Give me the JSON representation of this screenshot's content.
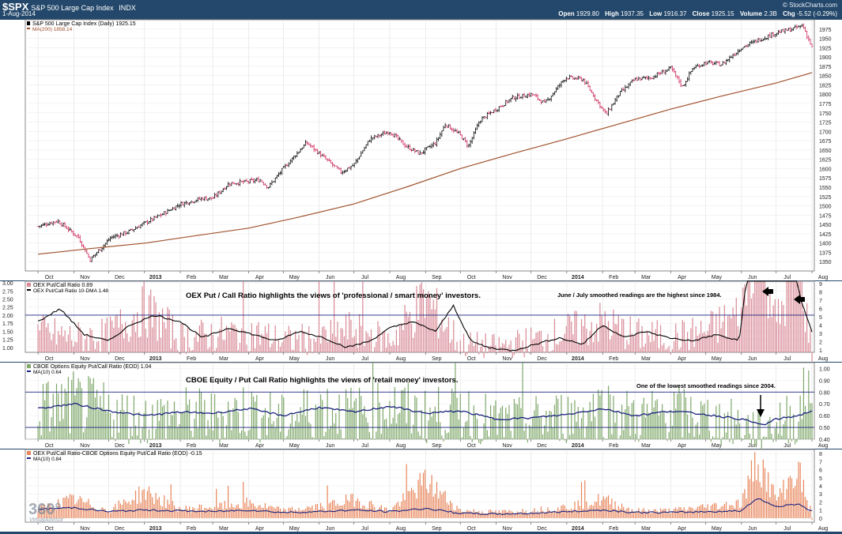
{
  "header": {
    "symbol": "$SPX",
    "symbol_name": "S&P 500 Large Cap Index",
    "exchange": "INDX",
    "date": "1-Aug-2014",
    "copyright": "© StockCharts.com",
    "open_label": "Open",
    "open": "1929.80",
    "high_label": "High",
    "high": "1937.35",
    "low_label": "Low",
    "low": "1916.37",
    "close_label": "Close",
    "close": "1925.15",
    "volume_label": "Volume",
    "volume": "2.3B",
    "chg_label": "Chg",
    "chg": "-5.52 (-0.29%)"
  },
  "colors": {
    "background": "#24486b",
    "panel": "#ffffff",
    "price_up": "#000000",
    "price_down": "#cc2255",
    "ma200": "#a0522d",
    "oex_bars": "#d98a96",
    "oex_line": "#000000",
    "cboe_bars": "#7fa86a",
    "cboe_line": "#1a237e",
    "diff_bars": "#e8855a",
    "diff_line": "#1a237e",
    "ref_line": "#1a237e"
  },
  "x_axis": {
    "ticks": [
      "Oct",
      "Nov",
      "Dec",
      "2013",
      "Feb",
      "Mar",
      "Apr",
      "May",
      "Jun",
      "Jul",
      "Aug",
      "Sep",
      "Oct",
      "Nov",
      "Dec",
      "2014",
      "Feb",
      "Mar",
      "Apr",
      "May",
      "Jun",
      "Jul",
      "Aug"
    ],
    "bold_ticks": [
      "2013",
      "2014"
    ]
  },
  "watermark": {
    "text1": "360°",
    "text2": "VirtualAdvisor"
  },
  "chart_data": [
    {
      "type": "line",
      "title": "S&P 500 Large Cap Index (Daily) 1925.15",
      "series": [
        {
          "name": "S&P 500 Large Cap Index (Daily) 1925.15",
          "style": "ohlc",
          "x": [
            "2012-10-01",
            "2012-10-18",
            "2012-11-05",
            "2012-11-15",
            "2012-12-03",
            "2012-12-18",
            "2013-01-02",
            "2013-01-15",
            "2013-02-01",
            "2013-02-20",
            "2013-03-01",
            "2013-03-15",
            "2013-04-01",
            "2013-04-11",
            "2013-04-18",
            "2013-05-01",
            "2013-05-21",
            "2013-06-05",
            "2013-06-20",
            "2013-07-01",
            "2013-07-15",
            "2013-08-01",
            "2013-08-15",
            "2013-08-27",
            "2013-09-10",
            "2013-09-18",
            "2013-10-01",
            "2013-10-08",
            "2013-10-18",
            "2013-11-01",
            "2013-11-15",
            "2013-12-02",
            "2013-12-13",
            "2013-12-31",
            "2014-01-15",
            "2014-02-04",
            "2014-02-15",
            "2014-03-01",
            "2014-03-15",
            "2014-04-01",
            "2014-04-11",
            "2014-04-20",
            "2014-05-01",
            "2014-05-15",
            "2014-06-01",
            "2014-06-15",
            "2014-07-01",
            "2014-07-15",
            "2014-07-24",
            "2014-08-01"
          ],
          "values": [
            1445,
            1460,
            1415,
            1355,
            1415,
            1430,
            1455,
            1475,
            1505,
            1520,
            1520,
            1560,
            1565,
            1570,
            1550,
            1600,
            1670,
            1630,
            1590,
            1610,
            1680,
            1700,
            1660,
            1640,
            1670,
            1720,
            1690,
            1660,
            1730,
            1760,
            1790,
            1800,
            1775,
            1845,
            1840,
            1745,
            1800,
            1840,
            1845,
            1870,
            1820,
            1870,
            1885,
            1880,
            1925,
            1945,
            1965,
            1975,
            1985,
            1925
          ]
        },
        {
          "name": "MA(200) 1858.14",
          "x": [
            "2012-10-01",
            "2012-11-15",
            "2013-01-02",
            "2013-02-15",
            "2013-04-01",
            "2013-05-15",
            "2013-07-01",
            "2013-08-15",
            "2013-10-01",
            "2013-11-15",
            "2014-01-01",
            "2014-02-15",
            "2014-04-01",
            "2014-05-15",
            "2014-07-01",
            "2014-08-01"
          ],
          "values": [
            1370,
            1385,
            1400,
            1420,
            1440,
            1470,
            1505,
            1550,
            1600,
            1640,
            1680,
            1720,
            1760,
            1795,
            1830,
            1858
          ]
        }
      ],
      "ylim": [
        1325,
        2000
      ],
      "yticks": [
        1350,
        1375,
        1400,
        1425,
        1450,
        1475,
        1500,
        1525,
        1550,
        1575,
        1600,
        1625,
        1650,
        1675,
        1700,
        1725,
        1750,
        1775,
        1800,
        1825,
        1850,
        1875,
        1900,
        1925,
        1950,
        1975
      ],
      "legend": [
        "S&P 500 Large Cap Index (Daily) 1925.15",
        "MA(200) 1858.14"
      ],
      "grid": true
    },
    {
      "type": "bar",
      "series": [
        {
          "name": "OEX Put/Call Ratio 0.89",
          "style": "bars",
          "x": [
            "2012-10-01",
            "2012-11-01",
            "2012-12-01",
            "2013-01-01",
            "2013-02-01",
            "2013-03-01",
            "2013-04-01",
            "2013-05-01",
            "2013-06-01",
            "2013-07-01",
            "2013-08-01",
            "2013-09-01",
            "2013-10-01",
            "2013-11-01",
            "2013-12-01",
            "2014-01-01",
            "2014-02-01",
            "2014-03-01",
            "2014-04-01",
            "2014-05-01",
            "2014-06-01",
            "2014-06-15",
            "2014-07-01",
            "2014-07-20",
            "2014-08-01"
          ],
          "values": [
            1.6,
            1.4,
            1.5,
            2.4,
            1.4,
            1.5,
            1.6,
            1.3,
            1.4,
            1.7,
            1.3,
            2.7,
            1.2,
            1.1,
            1.3,
            1.6,
            1.9,
            1.5,
            1.4,
            1.6,
            2.2,
            5.5,
            1.8,
            4.1,
            0.89
          ]
        },
        {
          "name": "OEX Put/Call Ratio 10-DMA 1.48",
          "style": "line",
          "x": [
            "2012-10-01",
            "2012-10-20",
            "2012-11-10",
            "2012-12-01",
            "2012-12-20",
            "2013-01-10",
            "2013-02-01",
            "2013-02-20",
            "2013-03-15",
            "2013-04-05",
            "2013-04-25",
            "2013-05-15",
            "2013-06-05",
            "2013-06-25",
            "2013-07-15",
            "2013-08-01",
            "2013-08-20",
            "2013-09-10",
            "2013-09-25",
            "2013-10-10",
            "2013-10-25",
            "2013-11-15",
            "2013-12-05",
            "2013-12-25",
            "2014-01-15",
            "2014-02-01",
            "2014-02-20",
            "2014-03-10",
            "2014-03-30",
            "2014-04-20",
            "2014-05-10",
            "2014-05-30",
            "2014-06-05",
            "2014-06-12",
            "2014-06-20",
            "2014-06-28",
            "2014-07-05",
            "2014-07-15",
            "2014-07-22",
            "2014-08-01"
          ],
          "values": [
            1.8,
            2.2,
            1.4,
            1.2,
            1.7,
            2.0,
            1.8,
            1.3,
            1.6,
            1.4,
            1.2,
            1.5,
            1.3,
            1.0,
            1.2,
            1.6,
            1.8,
            1.5,
            2.3,
            1.2,
            1.0,
            0.9,
            1.1,
            1.3,
            1.1,
            1.7,
            1.3,
            1.5,
            1.3,
            1.2,
            1.4,
            1.2,
            3.0,
            4.4,
            5.2,
            3.2,
            3.3,
            4.0,
            2.5,
            1.48
          ]
        }
      ],
      "ylim": [
        0.85,
        3.05
      ],
      "yticks_left": [
        1.0,
        1.25,
        1.5,
        1.75,
        2.0,
        2.25,
        2.5,
        2.75,
        3.0
      ],
      "yticks_right": [
        1,
        2,
        3,
        4,
        5,
        6,
        7,
        8,
        9
      ],
      "reference_line": 2.0,
      "annotations": [
        "OEX Put / Call Ratio highlights the views of 'professional / smart money' investors.",
        "June / July smoothed readings are the highest since 1984."
      ],
      "legend": [
        "OEX Put/Call Ratio 0.89",
        "OEX Put/Call Ratio 10-DMA 1.48"
      ]
    },
    {
      "type": "bar",
      "series": [
        {
          "name": "CBOE Options Equity Put/Call Ratio (EOD) 1.04",
          "style": "bars",
          "x": [
            "2012-10-01",
            "2012-11-01",
            "2012-12-01",
            "2013-01-01",
            "2013-02-01",
            "2013-03-01",
            "2013-04-01",
            "2013-05-01",
            "2013-06-01",
            "2013-07-01",
            "2013-08-01",
            "2013-09-01",
            "2013-10-01",
            "2013-11-01",
            "2013-12-01",
            "2014-01-01",
            "2014-02-01",
            "2014-03-01",
            "2014-04-01",
            "2014-05-01",
            "2014-06-01",
            "2014-06-20",
            "2014-07-01",
            "2014-07-20",
            "2014-08-01"
          ],
          "values": [
            0.7,
            0.76,
            0.68,
            0.62,
            0.66,
            0.64,
            0.7,
            0.6,
            0.72,
            0.66,
            0.74,
            0.64,
            0.7,
            0.58,
            0.6,
            0.64,
            0.72,
            0.62,
            0.68,
            0.62,
            0.56,
            0.5,
            0.6,
            0.62,
            1.04
          ]
        },
        {
          "name": "MA(10) 0.64",
          "style": "line",
          "x": [
            "2012-10-01",
            "2012-11-01",
            "2012-12-01",
            "2013-01-01",
            "2013-02-01",
            "2013-03-01",
            "2013-04-01",
            "2013-05-01",
            "2013-06-01",
            "2013-07-01",
            "2013-08-01",
            "2013-09-01",
            "2013-10-01",
            "2013-11-01",
            "2013-12-01",
            "2014-01-01",
            "2014-02-01",
            "2014-03-01",
            "2014-04-01",
            "2014-05-01",
            "2014-06-01",
            "2014-06-20",
            "2014-07-01",
            "2014-07-20",
            "2014-08-01"
          ],
          "values": [
            0.66,
            0.7,
            0.64,
            0.6,
            0.63,
            0.62,
            0.66,
            0.6,
            0.67,
            0.63,
            0.68,
            0.62,
            0.64,
            0.57,
            0.58,
            0.61,
            0.66,
            0.6,
            0.64,
            0.61,
            0.57,
            0.52,
            0.57,
            0.6,
            0.64
          ]
        }
      ],
      "ylim": [
        0.4,
        1.05
      ],
      "yticks": [
        0.4,
        0.5,
        0.6,
        0.7,
        0.8,
        0.9,
        1.0
      ],
      "reference_lines": [
        0.8,
        0.5
      ],
      "annotations": [
        "CBOE Equity / Put Call Ratio highlights the views of 'retail money' investors.",
        "One of the lowest smoothed readings since 2004."
      ],
      "legend": [
        "CBOE Options Equity Put/Call Ratio (EOD) 1.04",
        "MA(10) 0.64"
      ]
    },
    {
      "type": "bar",
      "series": [
        {
          "name": "OEX Put/Call Ratio-CBOE Options Equity Put/Call Ratio (EOD) -0.15",
          "style": "bars",
          "x": [
            "2012-10-01",
            "2012-11-01",
            "2012-12-01",
            "2013-01-01",
            "2013-02-01",
            "2013-03-01",
            "2013-04-01",
            "2013-05-01",
            "2013-06-01",
            "2013-07-01",
            "2013-08-01",
            "2013-09-01",
            "2013-10-01",
            "2013-11-01",
            "2013-12-01",
            "2014-01-01",
            "2014-02-01",
            "2014-03-01",
            "2014-04-01",
            "2014-05-01",
            "2014-06-01",
            "2014-06-15",
            "2014-07-01",
            "2014-07-20",
            "2014-08-01"
          ],
          "values": [
            1.2,
            2.5,
            1.0,
            3.5,
            1.2,
            1.5,
            2.0,
            1.0,
            1.5,
            2.5,
            1.0,
            5.0,
            1.0,
            0.8,
            1.0,
            1.5,
            2.5,
            1.0,
            1.0,
            1.5,
            2.0,
            8.0,
            2.5,
            6.5,
            -0.15
          ]
        },
        {
          "name": "MA(10) 0.84",
          "style": "line",
          "x": [
            "2012-10-01",
            "2012-11-01",
            "2012-12-01",
            "2013-01-01",
            "2013-02-01",
            "2013-03-01",
            "2013-04-01",
            "2013-05-01",
            "2013-06-01",
            "2013-07-01",
            "2013-08-01",
            "2013-09-01",
            "2013-10-01",
            "2013-11-01",
            "2013-12-01",
            "2014-01-01",
            "2014-02-01",
            "2014-03-01",
            "2014-04-01",
            "2014-05-01",
            "2014-06-01",
            "2014-06-15",
            "2014-07-01",
            "2014-07-20",
            "2014-08-01"
          ],
          "values": [
            1.1,
            1.3,
            0.8,
            1.0,
            0.9,
            0.8,
            1.0,
            0.7,
            0.8,
            1.0,
            0.8,
            1.2,
            0.6,
            0.5,
            0.6,
            0.8,
            1.0,
            0.7,
            0.7,
            0.8,
            0.9,
            2.5,
            1.4,
            1.8,
            0.84
          ]
        }
      ],
      "ylim": [
        -0.5,
        8.5
      ],
      "yticks": [
        0,
        1,
        2,
        3,
        4,
        5,
        6,
        7,
        8
      ],
      "legend": [
        "OEX Put/Call Ratio-CBOE Options Equity Put/Call Ratio (EOD) -0.15",
        "MA(10) 0.84"
      ]
    }
  ]
}
